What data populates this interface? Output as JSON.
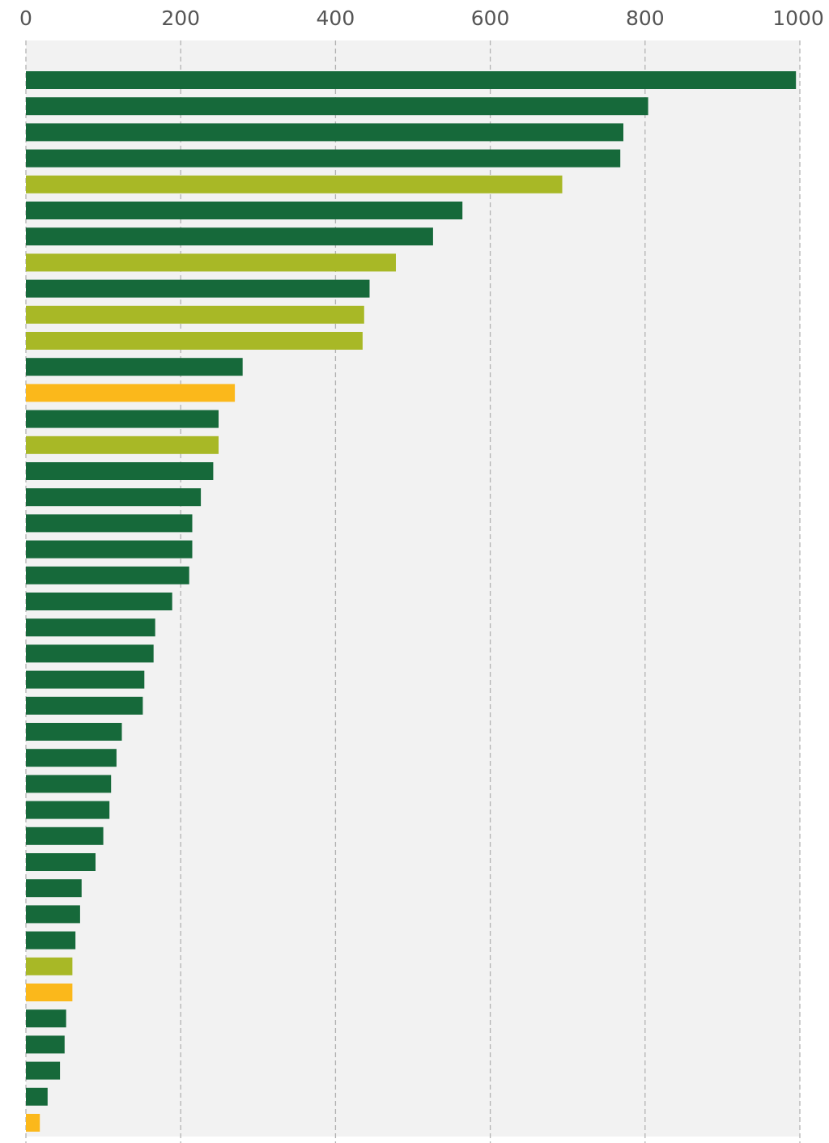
{
  "chart_data": {
    "type": "bar",
    "orientation": "horizontal",
    "title": "",
    "xlabel": "",
    "ylabel": "",
    "xlim": [
      0,
      1000
    ],
    "x_ticks": [
      "0",
      "200",
      "400",
      "600",
      "800",
      "1000"
    ],
    "x_tick_values": [
      0,
      200,
      400,
      600,
      800,
      1000
    ],
    "grid": "vertical dashed",
    "legend": "none",
    "colors": {
      "dark_green": "#16693a",
      "olive": "#a8b826",
      "amber": "#fbb81b",
      "panel_background": "#f2f2f2",
      "grid": "#b3b3b3",
      "tick_text": "#555555"
    },
    "values": [
      995,
      804,
      772,
      768,
      693,
      564,
      526,
      478,
      444,
      437,
      435,
      280,
      270,
      249,
      249,
      242,
      226,
      215,
      215,
      211,
      189,
      167,
      165,
      153,
      151,
      124,
      117,
      110,
      108,
      100,
      90,
      72,
      70,
      64,
      60,
      60,
      52,
      50,
      44,
      28,
      18
    ],
    "bar_colors": [
      "dark_green",
      "dark_green",
      "dark_green",
      "dark_green",
      "olive",
      "dark_green",
      "dark_green",
      "olive",
      "dark_green",
      "olive",
      "olive",
      "dark_green",
      "amber",
      "dark_green",
      "olive",
      "dark_green",
      "dark_green",
      "dark_green",
      "dark_green",
      "dark_green",
      "dark_green",
      "dark_green",
      "dark_green",
      "dark_green",
      "dark_green",
      "dark_green",
      "dark_green",
      "dark_green",
      "dark_green",
      "dark_green",
      "dark_green",
      "dark_green",
      "dark_green",
      "dark_green",
      "olive",
      "amber",
      "dark_green",
      "dark_green",
      "dark_green",
      "dark_green",
      "amber"
    ]
  }
}
